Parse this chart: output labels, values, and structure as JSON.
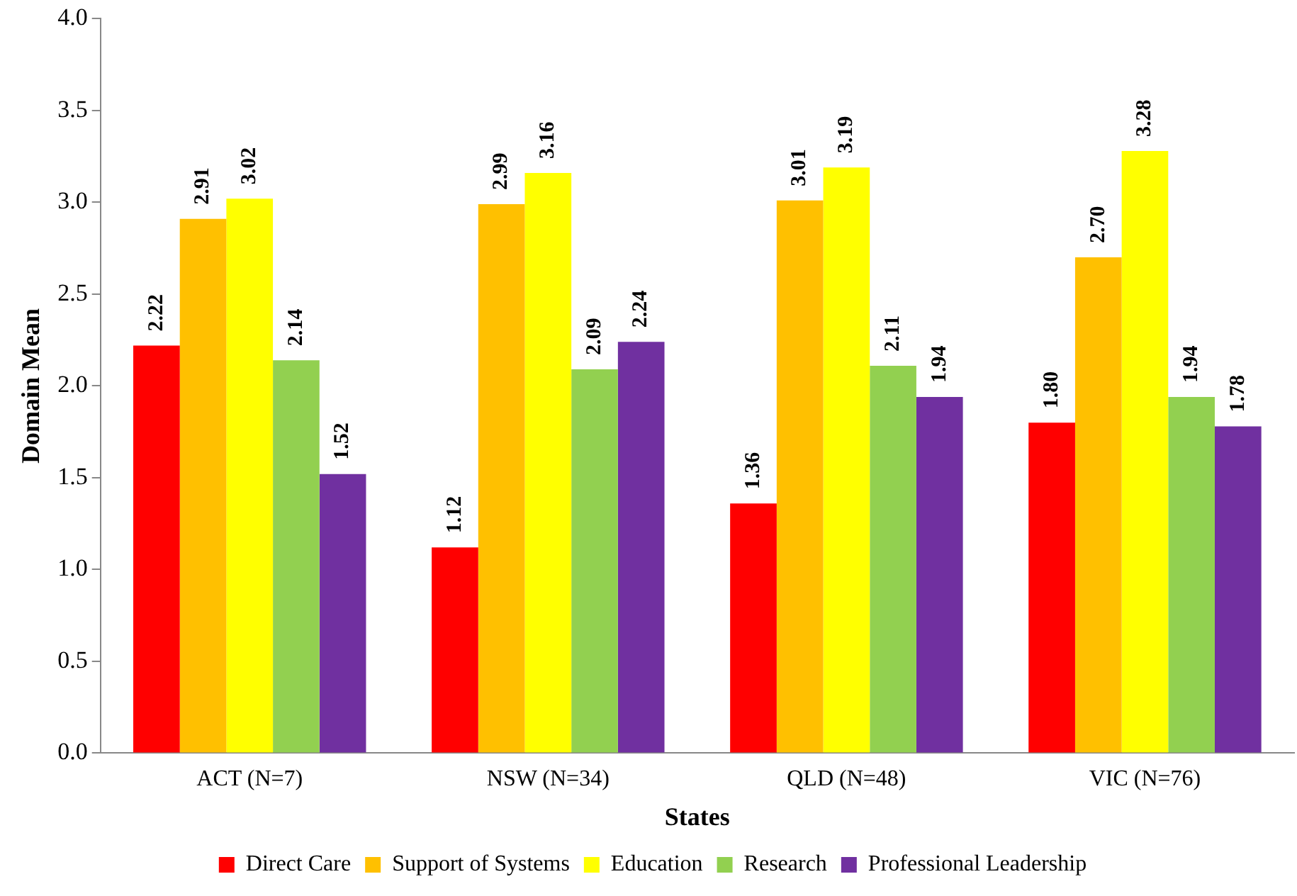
{
  "chart_data": {
    "type": "bar",
    "xlabel": "States",
    "ylabel": "Domain Mean",
    "categories": [
      "ACT (N=7)",
      "NSW (N=34)",
      "QLD (N=48)",
      "VIC (N=76)"
    ],
    "series": [
      {
        "name": "Direct Care",
        "color": "#ff0000",
        "values": [
          2.22,
          1.12,
          1.36,
          1.8
        ]
      },
      {
        "name": "Support of Systems",
        "color": "#ffc000",
        "values": [
          2.91,
          2.99,
          3.01,
          2.7
        ]
      },
      {
        "name": "Education",
        "color": "#ffff00",
        "values": [
          3.02,
          3.16,
          3.19,
          3.28
        ]
      },
      {
        "name": "Research",
        "color": "#92d050",
        "values": [
          2.14,
          2.09,
          2.11,
          1.94
        ]
      },
      {
        "name": "Professional Leadership",
        "color": "#7030a0",
        "values": [
          1.52,
          2.24,
          1.94,
          1.78
        ]
      }
    ],
    "value_labels": [
      [
        "2.22",
        "1.12",
        "1.36",
        "1.80"
      ],
      [
        "2.91",
        "2.99",
        "3.01",
        "2.70"
      ],
      [
        "3.02",
        "3.16",
        "3.19",
        "3.28"
      ],
      [
        "2.14",
        "2.09",
        "2.11",
        "1.94"
      ],
      [
        "1.52",
        "2.24",
        "1.94",
        "1.78"
      ]
    ],
    "ylim": [
      0,
      4
    ],
    "yticks": [
      {
        "value": 0,
        "label": "0.0"
      },
      {
        "value": 0.5,
        "label": "0.5"
      },
      {
        "value": 1,
        "label": "1.0"
      },
      {
        "value": 1.5,
        "label": "1.5"
      },
      {
        "value": 2,
        "label": "2.0"
      },
      {
        "value": 2.5,
        "label": "2.5"
      },
      {
        "value": 3,
        "label": "3.0"
      },
      {
        "value": 3.5,
        "label": "3.5"
      },
      {
        "value": 4,
        "label": "4.0"
      }
    ],
    "grid": false,
    "legend": "bottom"
  }
}
